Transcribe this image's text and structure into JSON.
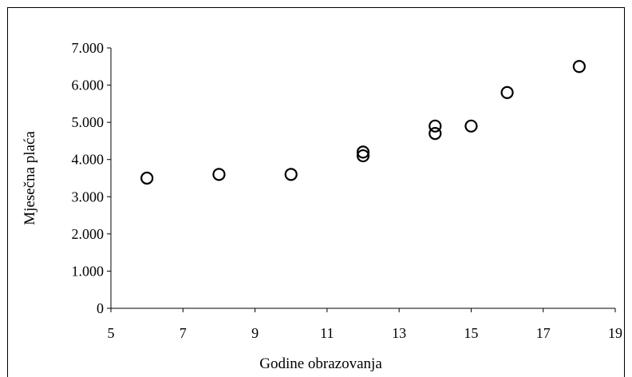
{
  "chart_data": {
    "type": "scatter",
    "xlabel": "Godine obrazovanja",
    "ylabel": "Mjesečna plaća",
    "xlim": [
      5,
      19
    ],
    "ylim": [
      0,
      7000
    ],
    "x_ticks": [
      "5",
      "7",
      "9",
      "11",
      "13",
      "15",
      "17",
      "19"
    ],
    "y_ticks": [
      "0",
      "1.000",
      "2.000",
      "3.000",
      "4.000",
      "5.000",
      "6.000",
      "7.000"
    ],
    "grid": false,
    "legend": "none",
    "points": [
      {
        "x": 6,
        "y": 3500
      },
      {
        "x": 8,
        "y": 3600
      },
      {
        "x": 10,
        "y": 3600
      },
      {
        "x": 12,
        "y": 4100
      },
      {
        "x": 12,
        "y": 4200
      },
      {
        "x": 14,
        "y": 4700
      },
      {
        "x": 14,
        "y": 4900
      },
      {
        "x": 15,
        "y": 4900
      },
      {
        "x": 16,
        "y": 5800
      },
      {
        "x": 18,
        "y": 6500
      }
    ]
  }
}
